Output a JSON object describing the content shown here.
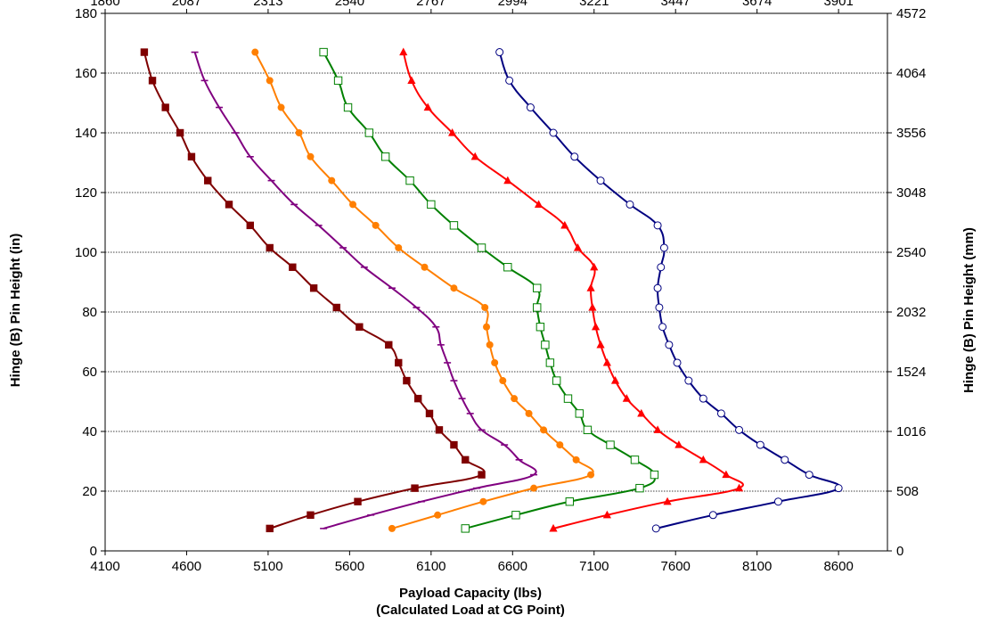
{
  "chart_data": {
    "type": "line",
    "xlabel_line1": "Payload Capacity (lbs)",
    "xlabel_line2": "(Calculated Load at CG Point)",
    "ylabel": "Hinge (B) Pin Height (in)",
    "y2label": "Hinge (B) Pin Height (mm)",
    "xlim": [
      4100,
      8900
    ],
    "ylim": [
      0,
      180
    ],
    "grid": true,
    "x_ticks": [
      4100,
      4600,
      5100,
      5600,
      6100,
      6600,
      7100,
      7600,
      8100,
      8600
    ],
    "y_ticks": [
      0,
      20,
      40,
      60,
      80,
      100,
      120,
      140,
      160,
      180
    ],
    "top_ticks": [
      "1860",
      "2087",
      "2313",
      "2540",
      "2767",
      "2994",
      "3221",
      "3447",
      "3674",
      "3901"
    ],
    "right_ticks": [
      "0",
      "508",
      "1016",
      "1524",
      "2032",
      "2540",
      "3048",
      "3556",
      "4064",
      "4572"
    ],
    "series": [
      {
        "color": "#7f0000",
        "marker": "square-filled",
        "points": [
          [
            4340,
            167
          ],
          [
            4390,
            157.5
          ],
          [
            4470,
            148.5
          ],
          [
            4560,
            140
          ],
          [
            4630,
            132
          ],
          [
            4730,
            124
          ],
          [
            4860,
            116
          ],
          [
            4990,
            109
          ],
          [
            5110,
            101.5
          ],
          [
            5250,
            95
          ],
          [
            5380,
            88
          ],
          [
            5520,
            81.5
          ],
          [
            5660,
            75
          ],
          [
            5840,
            69
          ],
          [
            5900,
            63
          ],
          [
            5950,
            57
          ],
          [
            6020,
            51
          ],
          [
            6090,
            46
          ],
          [
            6150,
            40.5
          ],
          [
            6240,
            35.5
          ],
          [
            6310,
            30.5
          ],
          [
            6410,
            25.5
          ],
          [
            6000,
            21
          ],
          [
            5650,
            16.5
          ],
          [
            5360,
            12
          ],
          [
            5110,
            7.5
          ]
        ]
      },
      {
        "color": "#800080",
        "marker": "dash",
        "points": [
          [
            4650,
            167
          ],
          [
            4710,
            157.5
          ],
          [
            4800,
            148.5
          ],
          [
            4900,
            140
          ],
          [
            4990,
            132
          ],
          [
            5120,
            124
          ],
          [
            5260,
            116
          ],
          [
            5410,
            109
          ],
          [
            5560,
            101.5
          ],
          [
            5690,
            95
          ],
          [
            5860,
            88
          ],
          [
            6010,
            81.5
          ],
          [
            6130,
            75
          ],
          [
            6160,
            69
          ],
          [
            6200,
            63
          ],
          [
            6240,
            57
          ],
          [
            6290,
            51
          ],
          [
            6340,
            46
          ],
          [
            6410,
            40.5
          ],
          [
            6550,
            35.5
          ],
          [
            6640,
            30.5
          ],
          [
            6730,
            25.5
          ],
          [
            6380,
            21
          ],
          [
            6040,
            16.5
          ],
          [
            5730,
            12
          ],
          [
            5440,
            7.5
          ]
        ]
      },
      {
        "color": "#ff7f00",
        "marker": "circle-filled",
        "points": [
          [
            5020,
            167
          ],
          [
            5110,
            157.5
          ],
          [
            5180,
            148.5
          ],
          [
            5290,
            140
          ],
          [
            5360,
            132
          ],
          [
            5490,
            124
          ],
          [
            5620,
            116
          ],
          [
            5760,
            109
          ],
          [
            5900,
            101.5
          ],
          [
            6060,
            95
          ],
          [
            6240,
            88
          ],
          [
            6430,
            81.5
          ],
          [
            6440,
            75
          ],
          [
            6460,
            69
          ],
          [
            6490,
            63
          ],
          [
            6540,
            57
          ],
          [
            6610,
            51
          ],
          [
            6700,
            46
          ],
          [
            6790,
            40.5
          ],
          [
            6890,
            35.5
          ],
          [
            6990,
            30.5
          ],
          [
            7080,
            25.5
          ],
          [
            6730,
            21
          ],
          [
            6420,
            16.5
          ],
          [
            6140,
            12
          ],
          [
            5860,
            7.5
          ]
        ]
      },
      {
        "color": "#008000",
        "marker": "square-open",
        "points": [
          [
            5440,
            167
          ],
          [
            5530,
            157.5
          ],
          [
            5590,
            148.5
          ],
          [
            5720,
            140
          ],
          [
            5820,
            132
          ],
          [
            5970,
            124
          ],
          [
            6100,
            116
          ],
          [
            6240,
            109
          ],
          [
            6410,
            101.5
          ],
          [
            6570,
            95
          ],
          [
            6750,
            88
          ],
          [
            6750,
            81.5
          ],
          [
            6770,
            75
          ],
          [
            6800,
            69
          ],
          [
            6830,
            63
          ],
          [
            6870,
            57
          ],
          [
            6940,
            51
          ],
          [
            7010,
            46
          ],
          [
            7060,
            40.5
          ],
          [
            7200,
            35.5
          ],
          [
            7350,
            30.5
          ],
          [
            7470,
            25.5
          ],
          [
            7380,
            21
          ],
          [
            6950,
            16.5
          ],
          [
            6620,
            12
          ],
          [
            6310,
            7.5
          ]
        ]
      },
      {
        "color": "#ff0000",
        "marker": "triangle-filled",
        "points": [
          [
            5930,
            167
          ],
          [
            5980,
            157.5
          ],
          [
            6080,
            148.5
          ],
          [
            6230,
            140
          ],
          [
            6370,
            132
          ],
          [
            6570,
            124
          ],
          [
            6760,
            116
          ],
          [
            6920,
            109
          ],
          [
            7000,
            101.5
          ],
          [
            7100,
            95
          ],
          [
            7080,
            88
          ],
          [
            7090,
            81.5
          ],
          [
            7110,
            75
          ],
          [
            7140,
            69
          ],
          [
            7180,
            63
          ],
          [
            7230,
            57
          ],
          [
            7300,
            51
          ],
          [
            7390,
            46
          ],
          [
            7490,
            40.5
          ],
          [
            7620,
            35.5
          ],
          [
            7770,
            30.5
          ],
          [
            7910,
            25.5
          ],
          [
            7990,
            21
          ],
          [
            7550,
            16.5
          ],
          [
            7180,
            12
          ],
          [
            6850,
            7.5
          ]
        ]
      },
      {
        "color": "#000080",
        "marker": "circle-open",
        "points": [
          [
            6520,
            167
          ],
          [
            6580,
            157.5
          ],
          [
            6710,
            148.5
          ],
          [
            6850,
            140
          ],
          [
            6980,
            132
          ],
          [
            7140,
            124
          ],
          [
            7320,
            116
          ],
          [
            7490,
            109
          ],
          [
            7530,
            101.5
          ],
          [
            7510,
            95
          ],
          [
            7490,
            88
          ],
          [
            7500,
            81.5
          ],
          [
            7520,
            75
          ],
          [
            7560,
            69
          ],
          [
            7610,
            63
          ],
          [
            7680,
            57
          ],
          [
            7770,
            51
          ],
          [
            7880,
            46
          ],
          [
            7990,
            40.5
          ],
          [
            8120,
            35.5
          ],
          [
            8270,
            30.5
          ],
          [
            8420,
            25.5
          ],
          [
            8600,
            21
          ],
          [
            8230,
            16.5
          ],
          [
            7830,
            12
          ],
          [
            7480,
            7.5
          ]
        ]
      }
    ]
  }
}
